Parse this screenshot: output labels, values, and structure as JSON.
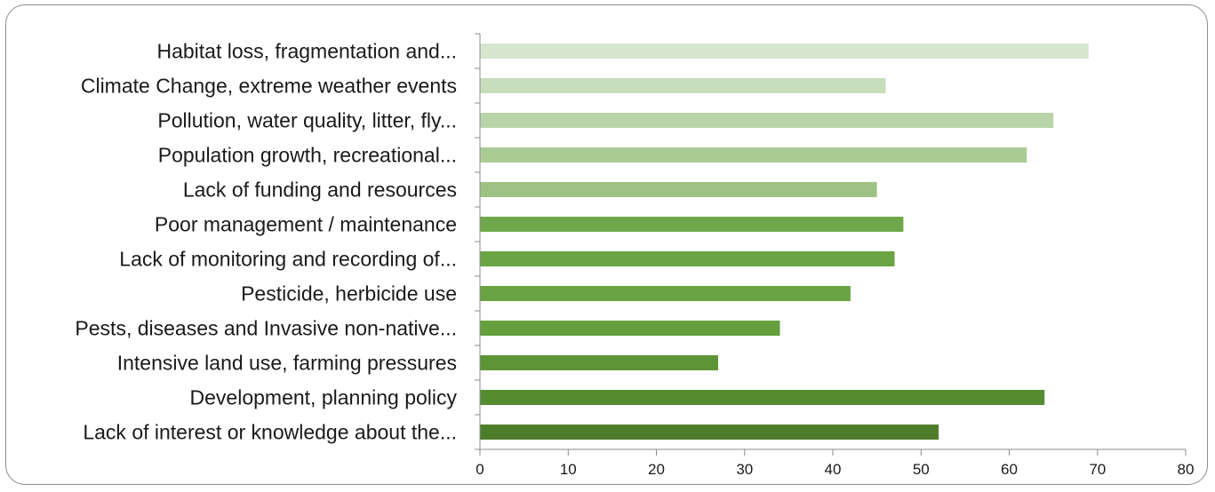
{
  "chart_data": {
    "type": "bar",
    "orientation": "horizontal",
    "categories": [
      "Habitat loss, fragmentation and...",
      "Climate Change, extreme weather events",
      "Pollution, water quality, litter, fly...",
      "Population growth, recreational...",
      "Lack of funding and resources",
      "Poor management / maintenance",
      "Lack of monitoring and recording of...",
      "Pesticide, herbicide use",
      "Pests, diseases and Invasive non-native...",
      "Intensive land use, farming pressures",
      "Development, planning policy",
      "Lack of interest or knowledge about the..."
    ],
    "values": [
      69,
      46,
      65,
      62,
      45,
      48,
      47,
      42,
      34,
      27,
      64,
      52
    ],
    "colors": [
      "#d6e6cf",
      "#c7ddbb",
      "#b9d4a8",
      "#abcb95",
      "#9dc283",
      "#6fa84a",
      "#6aa443",
      "#6aa343",
      "#649e3d",
      "#5d9536",
      "#568c30",
      "#4d7d2b"
    ],
    "xlim": [
      0,
      80
    ],
    "xticks": [
      "0",
      "10",
      "20",
      "30",
      "40",
      "50",
      "60",
      "70",
      "80"
    ],
    "title": "",
    "xlabel": "",
    "ylabel": "",
    "grid": false,
    "legend": "none"
  }
}
